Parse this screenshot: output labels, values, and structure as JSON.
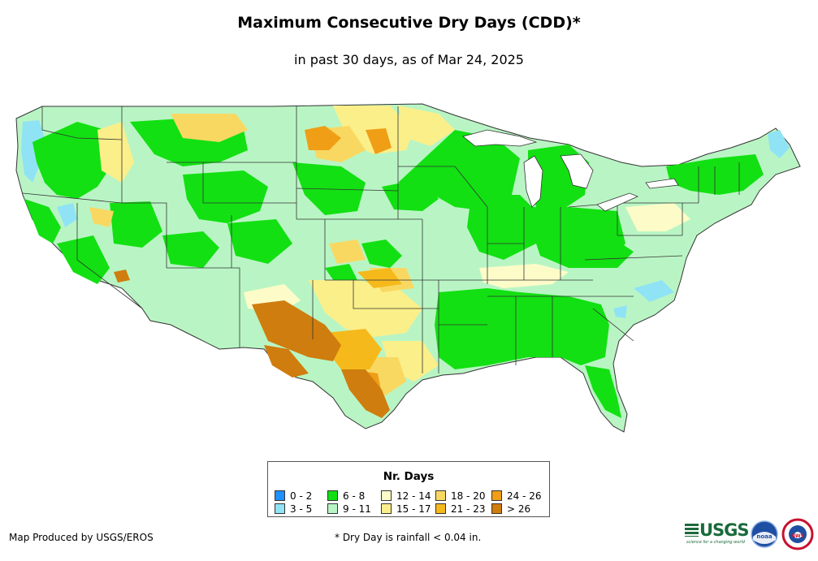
{
  "header": {
    "title": "Maximum Consecutive Dry Days (CDD)*",
    "subtitle": "in past 30 days, as of Mar 24, 2025"
  },
  "legend": {
    "title": "Nr. Days",
    "items": [
      {
        "label": "0 - 2",
        "color": "#1e90ff"
      },
      {
        "label": "3 - 5",
        "color": "#8fe3f5"
      },
      {
        "label": "6 - 8",
        "color": "#12e012"
      },
      {
        "label": "9 - 11",
        "color": "#b9f5c4"
      },
      {
        "label": "12 - 14",
        "color": "#fdfcc8"
      },
      {
        "label": "15 - 17",
        "color": "#fbef8a"
      },
      {
        "label": "18 - 20",
        "color": "#f9d862"
      },
      {
        "label": "21 - 23",
        "color": "#f5b91c"
      },
      {
        "label": "24 - 26",
        "color": "#ef9e16"
      },
      {
        "label": "> 26",
        "color": "#cf7d0e"
      }
    ]
  },
  "footer": {
    "credit": "Map Produced by USGS/EROS",
    "footnote": "* Dry Day is rainfall < 0.04 in."
  },
  "logos": {
    "usgs": "USGS",
    "usgs_tagline": "science for a changing world",
    "noaa": "noaa",
    "nws": "NWS"
  }
}
